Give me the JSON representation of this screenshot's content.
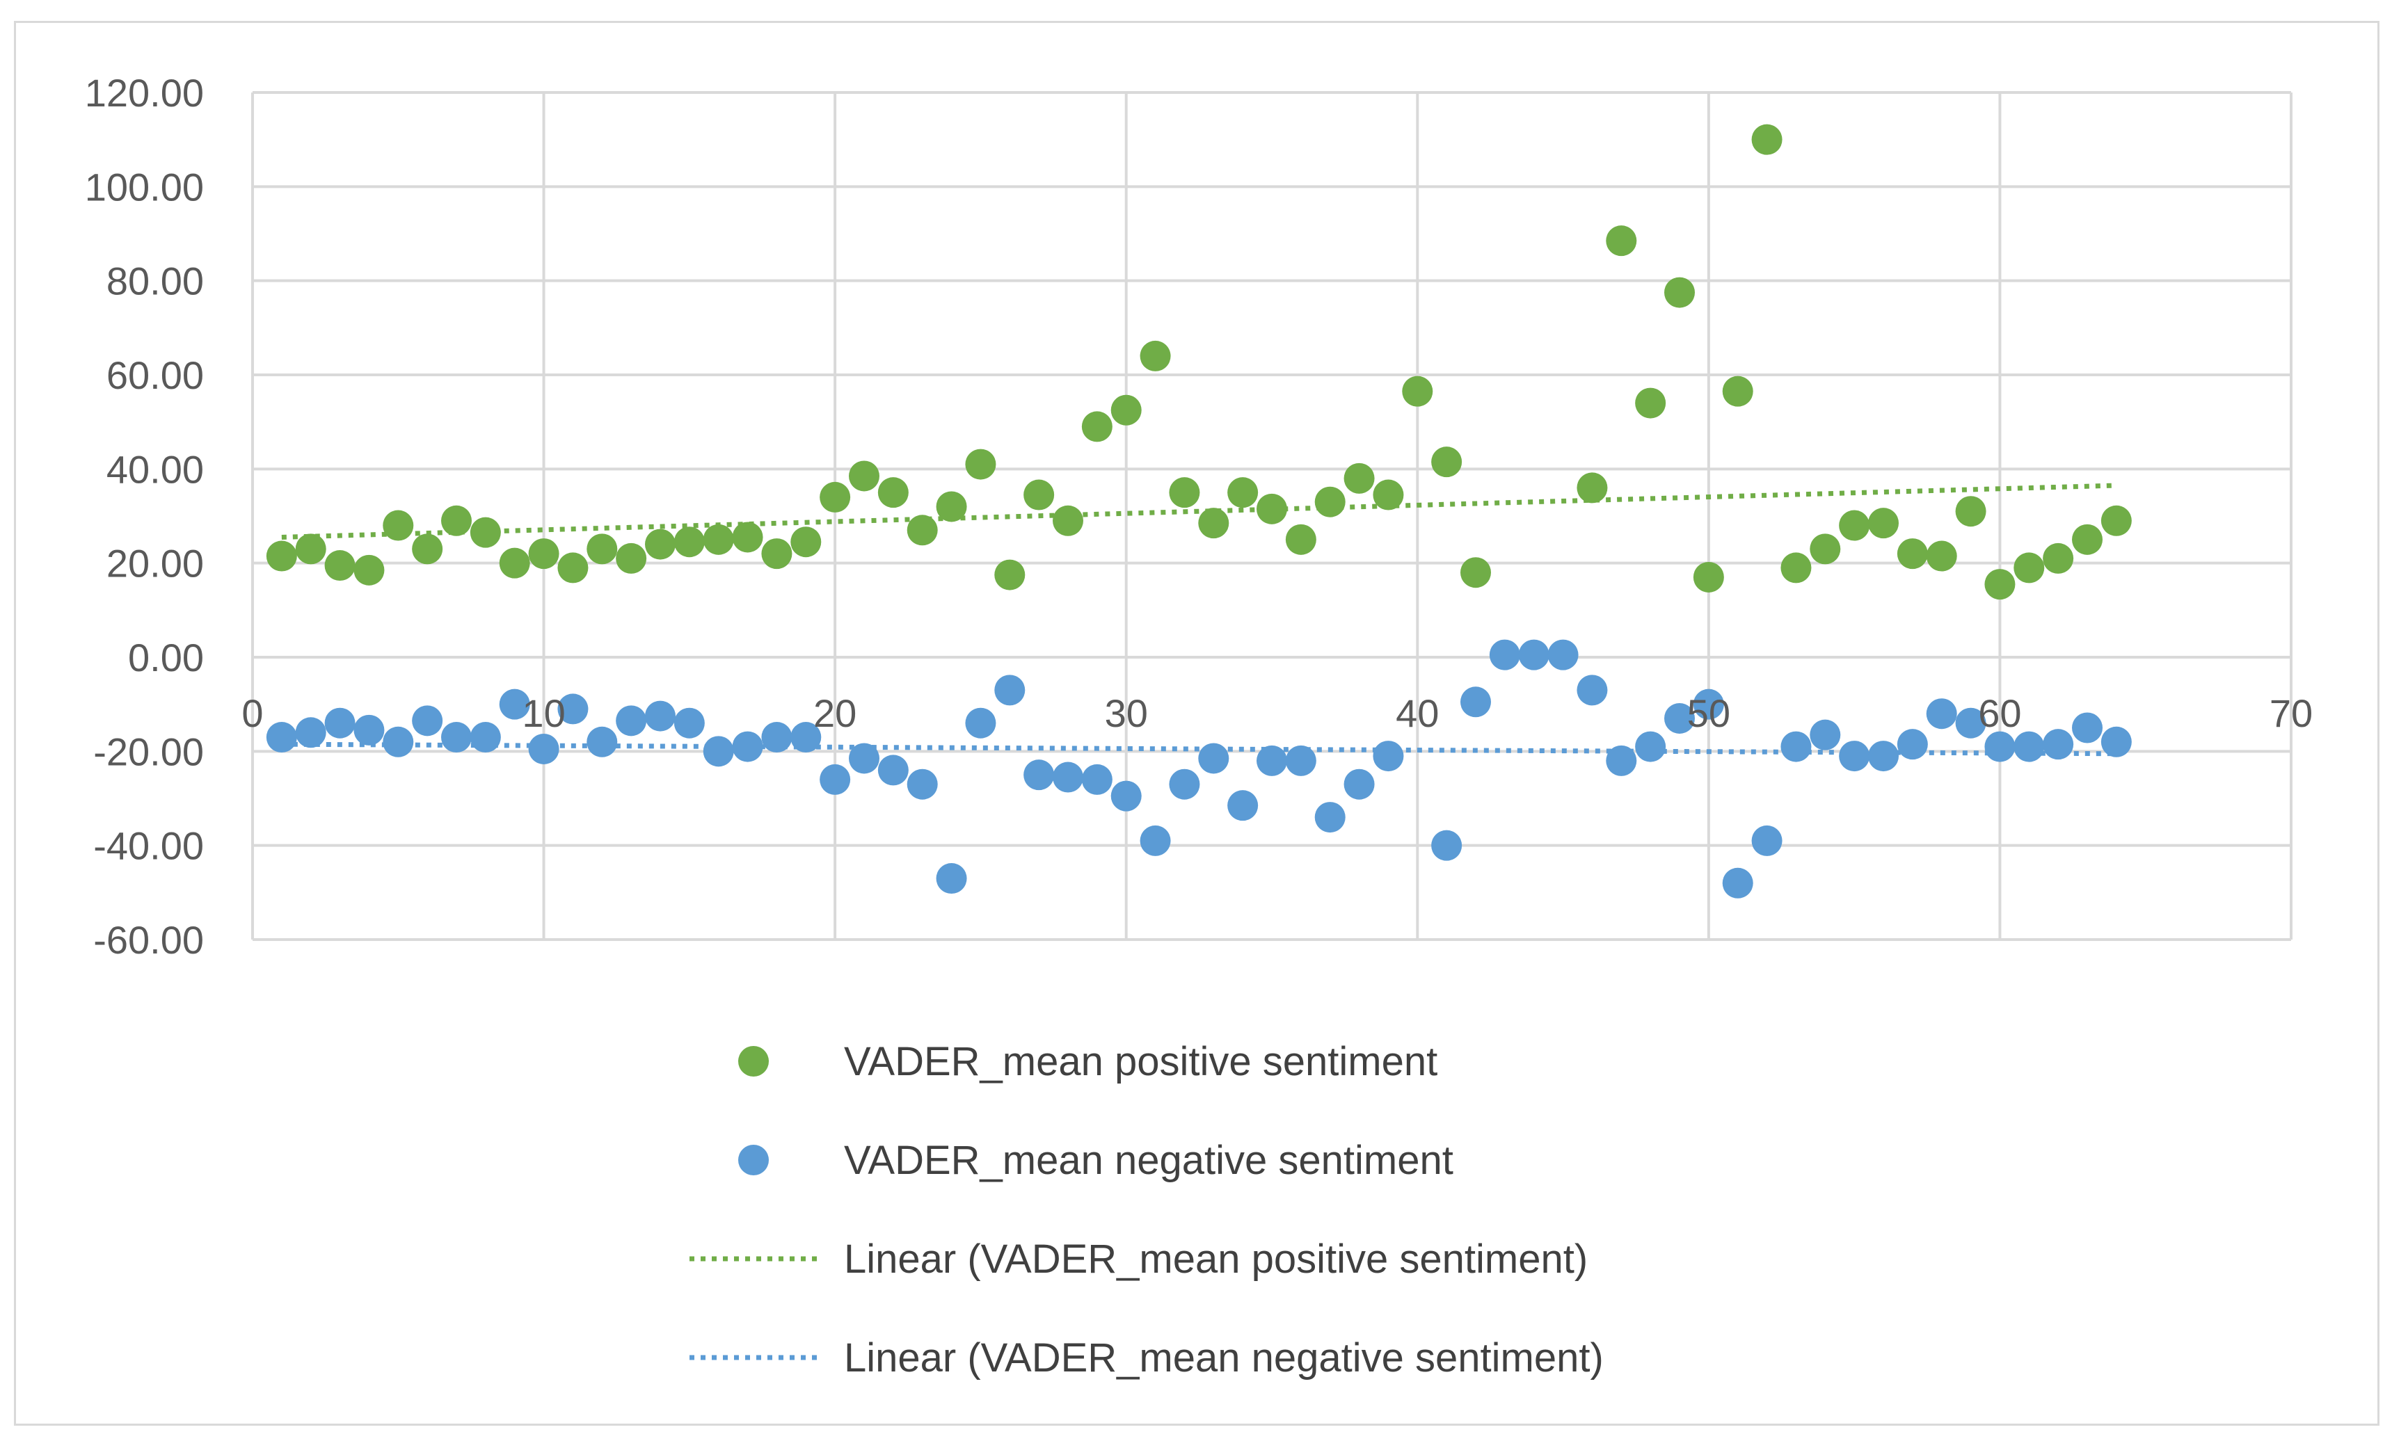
{
  "chart_data": {
    "type": "scatter",
    "title": "",
    "xlabel": "",
    "ylabel": "",
    "xlim": [
      0,
      70
    ],
    "ylim": [
      -60,
      120
    ],
    "x_ticks": [
      0,
      10,
      20,
      30,
      40,
      50,
      60,
      70
    ],
    "y_ticks": [
      120,
      100,
      80,
      60,
      40,
      20,
      0,
      -20,
      -40,
      -60
    ],
    "x_tick_labels": [
      "0",
      "10",
      "20",
      "30",
      "40",
      "50",
      "60",
      "70"
    ],
    "y_tick_labels": [
      "120.00",
      "100.00",
      "80.00",
      "60.00",
      "40.00",
      "20.00",
      "0.00",
      "-20.00",
      "-40.00",
      "-60.00"
    ],
    "grid": true,
    "legend_position": "bottom",
    "series": [
      {
        "name": "VADER_mean positive sentiment",
        "color": "#70ad47",
        "marker": "circle",
        "x": [
          1,
          2,
          3,
          4,
          5,
          6,
          7,
          8,
          9,
          10,
          11,
          12,
          13,
          14,
          15,
          16,
          17,
          18,
          19,
          20,
          21,
          22,
          23,
          24,
          25,
          26,
          27,
          28,
          29,
          30,
          31,
          32,
          33,
          34,
          35,
          36,
          37,
          38,
          39,
          40,
          41,
          42,
          46,
          47,
          48,
          49,
          50,
          51,
          52,
          53,
          54,
          55,
          56,
          57,
          58,
          59,
          60,
          61,
          62,
          63,
          64
        ],
        "values": [
          21.5,
          23,
          19.5,
          18.5,
          28,
          23,
          29,
          26.5,
          20,
          22,
          19,
          23,
          21,
          24,
          24.5,
          25,
          25.5,
          22,
          24.5,
          34,
          38.5,
          35,
          27,
          32,
          41,
          17.5,
          34.5,
          29,
          49,
          52.5,
          64,
          35,
          28.5,
          35,
          31.5,
          25,
          33,
          38,
          34.5,
          56.5,
          41.5,
          18,
          36,
          88.5,
          54,
          77.5,
          17,
          56.5,
          110,
          19,
          23,
          28,
          28.5,
          22,
          21.5,
          31,
          15.5,
          19,
          21,
          25,
          29
        ]
      },
      {
        "name": "VADER_mean negative sentiment",
        "color": "#5b9bd5",
        "marker": "circle",
        "x": [
          1,
          2,
          3,
          4,
          5,
          6,
          7,
          8,
          9,
          10,
          11,
          12,
          13,
          14,
          15,
          16,
          17,
          18,
          19,
          20,
          21,
          22,
          23,
          24,
          25,
          26,
          27,
          28,
          29,
          30,
          31,
          32,
          33,
          34,
          35,
          36,
          37,
          38,
          39,
          41,
          42,
          43,
          44,
          45,
          46,
          47,
          48,
          49,
          50,
          51,
          52,
          53,
          54,
          55,
          56,
          57,
          58,
          59,
          60,
          61,
          62,
          63,
          64
        ],
        "values": [
          -17,
          -16,
          -14,
          -15.5,
          -18,
          -13.5,
          -17,
          -17,
          -10,
          -19.5,
          -11,
          -18,
          -13.5,
          -12.5,
          -14,
          -20,
          -19,
          -17,
          -17,
          -26,
          -21.5,
          -24,
          -27,
          -47,
          -14,
          -7,
          -25,
          -25.5,
          -26,
          -29.5,
          -39,
          -27,
          -21.5,
          -31.5,
          -22,
          -22,
          -34,
          -27,
          -21,
          -40,
          -9.5,
          0.5,
          0.5,
          0.5,
          -7,
          -22,
          -19,
          -13,
          -10,
          -48,
          -39,
          -19,
          -16.5,
          -21,
          -21,
          -18.5,
          -12,
          -14,
          -19,
          -19,
          -18.5,
          -15,
          -18
        ]
      }
    ],
    "trendlines": [
      {
        "name": "Linear (VADER_mean positive sentiment)",
        "color": "#70ad47",
        "style": "dotted",
        "x": [
          1,
          64
        ],
        "values": [
          25.5,
          36.5
        ]
      },
      {
        "name": "Linear (VADER_mean negative sentiment)",
        "color": "#5b9bd5",
        "style": "dotted",
        "x": [
          1,
          64
        ],
        "values": [
          -18.5,
          -20.5
        ]
      }
    ],
    "legend": [
      {
        "label": "VADER_mean positive sentiment",
        "kind": "marker",
        "color": "#70ad47"
      },
      {
        "label": "VADER_mean negative sentiment",
        "kind": "marker",
        "color": "#5b9bd5"
      },
      {
        "label": "Linear (VADER_mean positive sentiment)",
        "kind": "dotted-line",
        "color": "#70ad47"
      },
      {
        "label": "Linear (VADER_mean negative sentiment)",
        "kind": "dotted-line",
        "color": "#5b9bd5"
      }
    ]
  },
  "colors": {
    "gridline": "#d9d9d9",
    "axis_text": "#595959",
    "legend_text": "#404040"
  }
}
